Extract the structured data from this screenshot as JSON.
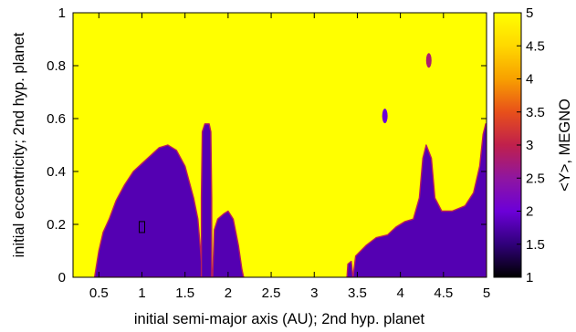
{
  "chart_data": {
    "type": "heatmap",
    "xlabel": "initial semi-major axis (AU); 2nd hyp. planet",
    "ylabel": "initial eccentricity; 2nd hyp. planet",
    "colorbar_label": "<Y>, MEGNO",
    "xlim": [
      0.2,
      5.0
    ],
    "ylim": [
      0,
      1
    ],
    "clim": [
      1,
      5
    ],
    "xticks": [
      "0.5",
      "1",
      "1.5",
      "2",
      "2.5",
      "3",
      "3.5",
      "4",
      "4.5",
      "5"
    ],
    "xtick_values": [
      0.5,
      1,
      1.5,
      2,
      2.5,
      3,
      3.5,
      4,
      4.5,
      5
    ],
    "yticks": [
      "0",
      "0.2",
      "0.4",
      "0.6",
      "0.8",
      "1"
    ],
    "ytick_values": [
      0,
      0.2,
      0.4,
      0.6,
      0.8,
      1
    ],
    "cticks": [
      "1",
      "1.5",
      "2",
      "2.5",
      "3",
      "3.5",
      "4",
      "4.5",
      "5"
    ],
    "ctick_values": [
      1,
      1.5,
      2,
      2.5,
      3,
      3.5,
      4,
      4.5,
      5
    ],
    "colormap": [
      "#000000",
      "#30007a",
      "#6c00d8",
      "#8f16a0",
      "#c0204c",
      "#e8501a",
      "#f8a000",
      "#ffd800",
      "#ffff00"
    ],
    "background_value": 5,
    "stable_value": 1.8,
    "regions": [
      {
        "name": "inner stable zone",
        "value": 1.8,
        "boundary": [
          [
            0.45,
            0
          ],
          [
            0.5,
            0.1
          ],
          [
            0.55,
            0.17
          ],
          [
            0.62,
            0.22
          ],
          [
            0.7,
            0.29
          ],
          [
            0.8,
            0.35
          ],
          [
            0.9,
            0.4
          ],
          [
            1.0,
            0.43
          ],
          [
            1.1,
            0.46
          ],
          [
            1.2,
            0.49
          ],
          [
            1.3,
            0.5
          ],
          [
            1.4,
            0.48
          ],
          [
            1.5,
            0.42
          ],
          [
            1.55,
            0.36
          ],
          [
            1.6,
            0.3
          ],
          [
            1.65,
            0.22
          ],
          [
            1.68,
            0.1
          ],
          [
            1.7,
            0.02
          ],
          [
            1.72,
            0
          ]
        ]
      },
      {
        "name": "stable island near 1.75 AU",
        "value": 1.8,
        "boundary": [
          [
            1.69,
            0
          ],
          [
            1.69,
            0.3
          ],
          [
            1.7,
            0.55
          ],
          [
            1.73,
            0.58
          ],
          [
            1.78,
            0.58
          ],
          [
            1.8,
            0.55
          ],
          [
            1.81,
            0.3
          ],
          [
            1.81,
            0
          ],
          [
            1.69,
            0
          ]
        ]
      },
      {
        "name": "stable strip 1.8 to 2.2 AU",
        "value": 1.8,
        "boundary": [
          [
            1.82,
            0
          ],
          [
            1.84,
            0.18
          ],
          [
            1.88,
            0.22
          ],
          [
            1.95,
            0.24
          ],
          [
            2.0,
            0.25
          ],
          [
            2.06,
            0.22
          ],
          [
            2.12,
            0.12
          ],
          [
            2.16,
            0.03
          ],
          [
            2.18,
            0
          ]
        ]
      },
      {
        "name": "outer stable zone",
        "value": 1.8,
        "boundary": [
          [
            3.45,
            0
          ],
          [
            3.48,
            0.08
          ],
          [
            3.6,
            0.12
          ],
          [
            3.72,
            0.15
          ],
          [
            3.85,
            0.16
          ],
          [
            3.95,
            0.19
          ],
          [
            4.05,
            0.21
          ],
          [
            4.15,
            0.22
          ],
          [
            4.22,
            0.3
          ],
          [
            4.26,
            0.45
          ],
          [
            4.3,
            0.5
          ],
          [
            4.36,
            0.45
          ],
          [
            4.4,
            0.3
          ],
          [
            4.48,
            0.25
          ],
          [
            4.6,
            0.25
          ],
          [
            4.75,
            0.27
          ],
          [
            4.85,
            0.32
          ],
          [
            4.92,
            0.42
          ],
          [
            4.96,
            0.54
          ],
          [
            4.99,
            0.58
          ],
          [
            5.0,
            0.58
          ],
          [
            5.0,
            0
          ]
        ]
      },
      {
        "name": "stable patch near 3.4 AU",
        "value": 1.8,
        "boundary": [
          [
            3.38,
            0
          ],
          [
            3.39,
            0.05
          ],
          [
            3.43,
            0.06
          ],
          [
            3.45,
            0
          ]
        ]
      }
    ],
    "spots": [
      {
        "x": 3.82,
        "y": 0.61,
        "value": 2.0
      },
      {
        "x": 4.33,
        "y": 0.82,
        "value": 2.8
      }
    ],
    "marker": {
      "x": 1.0,
      "y": 0.19,
      "shape": "rectangle"
    }
  }
}
